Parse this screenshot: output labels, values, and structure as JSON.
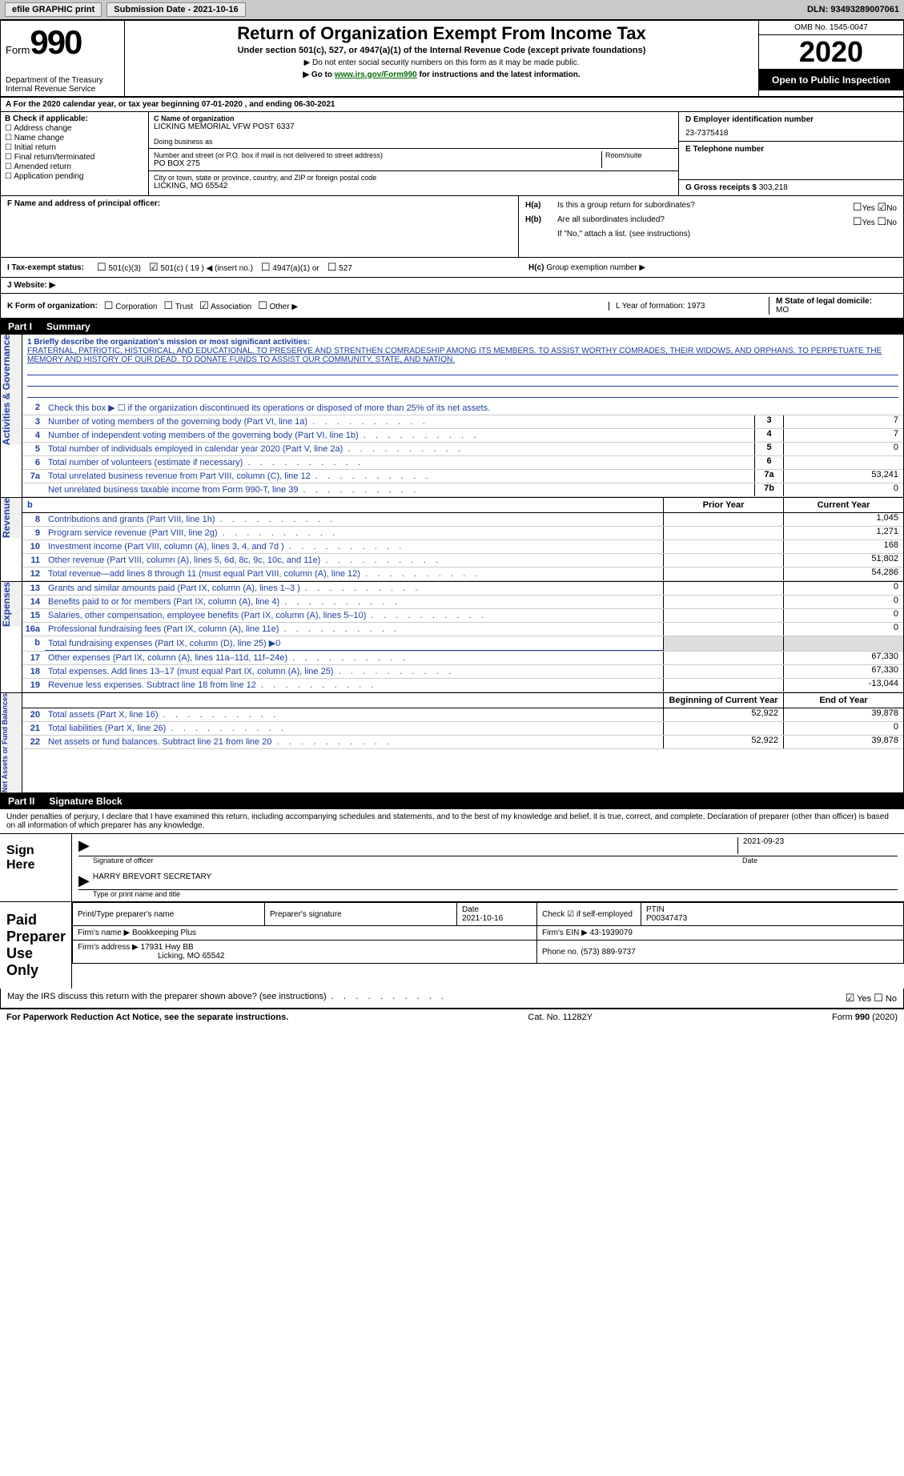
{
  "topbar": {
    "efile": "efile GRAPHIC print",
    "submission_label": "Submission Date - 2021-10-16",
    "dln_label": "DLN: 93493289007061"
  },
  "header": {
    "form_word": "Form",
    "form_number": "990",
    "dept": "Department of the Treasury",
    "irs": "Internal Revenue Service",
    "title": "Return of Organization Exempt From Income Tax",
    "subtitle": "Under section 501(c), 527, or 4947(a)(1) of the Internal Revenue Code (except private foundations)",
    "note1": "Do not enter social security numbers on this form as it may be made public.",
    "note2_pre": "Go to ",
    "note2_link": "www.irs.gov/Form990",
    "note2_post": " for instructions and the latest information.",
    "omb": "OMB No. 1545-0047",
    "year": "2020",
    "open": "Open to Public Inspection"
  },
  "period": "A For the 2020 calendar year, or tax year beginning 07-01-2020    , and ending 06-30-2021",
  "boxB": {
    "title": "B Check if applicable:",
    "items": [
      "Address change",
      "Name change",
      "Initial return",
      "Final return/terminated",
      "Amended return",
      "Application pending"
    ]
  },
  "boxC": {
    "name_label": "C Name of organization",
    "name": "LICKING MEMORIAL VFW POST 6337",
    "dba_label": "Doing business as",
    "street_label": "Number and street (or P.O. box if mail is not delivered to street address)",
    "room_label": "Room/suite",
    "street": "PO BOX 275",
    "city_label": "City or town, state or province, country, and ZIP or foreign postal code",
    "city": "LICKING, MO  65542"
  },
  "boxD": {
    "label": "D Employer identification number",
    "value": "23-7375418"
  },
  "boxE": {
    "label": "E Telephone number",
    "value": ""
  },
  "boxG": {
    "label": "G Gross receipts $",
    "value": "303,218"
  },
  "boxF": {
    "label": "F  Name and address of principal officer:"
  },
  "boxH": {
    "ha": "Is this a group return for subordinates?",
    "hb": "Are all subordinates included?",
    "hb_note": "If \"No,\" attach a list. (see instructions)",
    "hc": "Group exemption number ▶"
  },
  "boxI": {
    "label": "I   Tax-exempt status:",
    "opts": [
      "501(c)(3)",
      "501(c) ( 19 ) ◀ (insert no.)",
      "4947(a)(1) or",
      "527"
    ]
  },
  "boxJ": {
    "label": "J   Website: ▶"
  },
  "boxK": {
    "label": "K Form of organization:",
    "opts": [
      "Corporation",
      "Trust",
      "Association",
      "Other ▶"
    ]
  },
  "boxL": {
    "label": "L Year of formation: 1973"
  },
  "boxM": {
    "label": "M State of legal domicile:",
    "value": "MO"
  },
  "part1": {
    "label": "Part I",
    "title": "Summary"
  },
  "summary": {
    "line1_label": "1 Briefly describe the organization's mission or most significant activities:",
    "mission": "FRATERNAL, PATRIOTIC, HISTORICAL, AND EDUCATIONAL. TO PRESERVE AND STRENTHEN COMRADESHIP AMONG ITS MEMBERS. TO ASSIST WORTHY COMRADES, THEIR WIDOWS, AND ORPHANS. TO PERPETUATE THE MEMORY AND HISTORY OF OUR DEAD. TO DONATE FUNDS TO ASSIST OUR COMMUNITY, STATE, AND NATION.",
    "line2": "Check this box ▶ ☐ if the organization discontinued its operations or disposed of more than 25% of its net assets.",
    "lines_gov": [
      {
        "n": "3",
        "t": "Number of voting members of the governing body (Part VI, line 1a)",
        "box": "3",
        "v": "7"
      },
      {
        "n": "4",
        "t": "Number of independent voting members of the governing body (Part VI, line 1b)",
        "box": "4",
        "v": "7"
      },
      {
        "n": "5",
        "t": "Total number of individuals employed in calendar year 2020 (Part V, line 2a)",
        "box": "5",
        "v": "0"
      },
      {
        "n": "6",
        "t": "Total number of volunteers (estimate if necessary)",
        "box": "6",
        "v": ""
      },
      {
        "n": "7a",
        "t": "Total unrelated business revenue from Part VIII, column (C), line 12",
        "box": "7a",
        "v": "53,241"
      },
      {
        "n": "",
        "t": "Net unrelated business taxable income from Form 990-T, line 39",
        "box": "7b",
        "v": "0"
      }
    ],
    "col_prior": "Prior Year",
    "col_current": "Current Year",
    "revenue": [
      {
        "n": "8",
        "t": "Contributions and grants (Part VIII, line 1h)",
        "p": "",
        "c": "1,045"
      },
      {
        "n": "9",
        "t": "Program service revenue (Part VIII, line 2g)",
        "p": "",
        "c": "1,271"
      },
      {
        "n": "10",
        "t": "Investment income (Part VIII, column (A), lines 3, 4, and 7d )",
        "p": "",
        "c": "168"
      },
      {
        "n": "11",
        "t": "Other revenue (Part VIII, column (A), lines 5, 6d, 8c, 9c, 10c, and 11e)",
        "p": "",
        "c": "51,802"
      },
      {
        "n": "12",
        "t": "Total revenue—add lines 8 through 11 (must equal Part VIII, column (A), line 12)",
        "p": "",
        "c": "54,286"
      }
    ],
    "expenses": [
      {
        "n": "13",
        "t": "Grants and similar amounts paid (Part IX, column (A), lines 1–3 )",
        "p": "",
        "c": "0"
      },
      {
        "n": "14",
        "t": "Benefits paid to or for members (Part IX, column (A), line 4)",
        "p": "",
        "c": "0"
      },
      {
        "n": "15",
        "t": "Salaries, other compensation, employee benefits (Part IX, column (A), lines 5–10)",
        "p": "",
        "c": "0"
      },
      {
        "n": "16a",
        "t": "Professional fundraising fees (Part IX, column (A), line 11e)",
        "p": "",
        "c": "0"
      },
      {
        "n": "b",
        "t": "Total fundraising expenses (Part IX, column (D), line 25) ▶0",
        "p": "",
        "c": "",
        "noval": true
      },
      {
        "n": "17",
        "t": "Other expenses (Part IX, column (A), lines 11a–11d, 11f–24e)",
        "p": "",
        "c": "67,330"
      },
      {
        "n": "18",
        "t": "Total expenses. Add lines 13–17 (must equal Part IX, column (A), line 25)",
        "p": "",
        "c": "67,330"
      },
      {
        "n": "19",
        "t": "Revenue less expenses. Subtract line 18 from line 12",
        "p": "",
        "c": "-13,044"
      }
    ],
    "col_begin": "Beginning of Current Year",
    "col_end": "End of Year",
    "netassets": [
      {
        "n": "20",
        "t": "Total assets (Part X, line 16)",
        "p": "52,922",
        "c": "39,878"
      },
      {
        "n": "21",
        "t": "Total liabilities (Part X, line 26)",
        "p": "",
        "c": "0"
      },
      {
        "n": "22",
        "t": "Net assets or fund balances. Subtract line 21 from line 20",
        "p": "52,922",
        "c": "39,878"
      }
    ]
  },
  "vtabs": {
    "gov": "Activities & Governance",
    "rev": "Revenue",
    "exp": "Expenses",
    "net": "Net Assets or Fund Balances"
  },
  "part2": {
    "label": "Part II",
    "title": "Signature Block"
  },
  "sig": {
    "declaration": "Under penalties of perjury, I declare that I have examined this return, including accompanying schedules and statements, and to the best of my knowledge and belief, it is true, correct, and complete. Declaration of preparer (other than officer) is based on all information of which preparer has any knowledge.",
    "sign_here": "Sign Here",
    "sig_officer": "Signature of officer",
    "date": "Date",
    "date_val": "2021-09-23",
    "name_title": "HARRY BREVORT  SECRETARY",
    "name_label": "Type or print name and title",
    "paid": "Paid Preparer Use Only",
    "p_name_label": "Print/Type preparer's name",
    "p_sig_label": "Preparer's signature",
    "p_date_label": "Date",
    "p_date": "2021-10-16",
    "p_self": "Check ☑ if self-employed",
    "ptin_label": "PTIN",
    "ptin": "P00347473",
    "firm_name_label": "Firm's name    ▶",
    "firm_name": "Bookkeeping Plus",
    "firm_ein_label": "Firm's EIN ▶",
    "firm_ein": "43-1939079",
    "firm_addr_label": "Firm's address ▶",
    "firm_addr": "17931 Hwy BB",
    "firm_city": "Licking, MO  65542",
    "phone_label": "Phone no.",
    "phone": "(573) 889-9737",
    "discuss": "May the IRS discuss this return with the preparer shown above? (see instructions)"
  },
  "footer": {
    "pra": "For Paperwork Reduction Act Notice, see the separate instructions.",
    "cat": "Cat. No. 11282Y",
    "form": "Form 990 (2020)"
  }
}
